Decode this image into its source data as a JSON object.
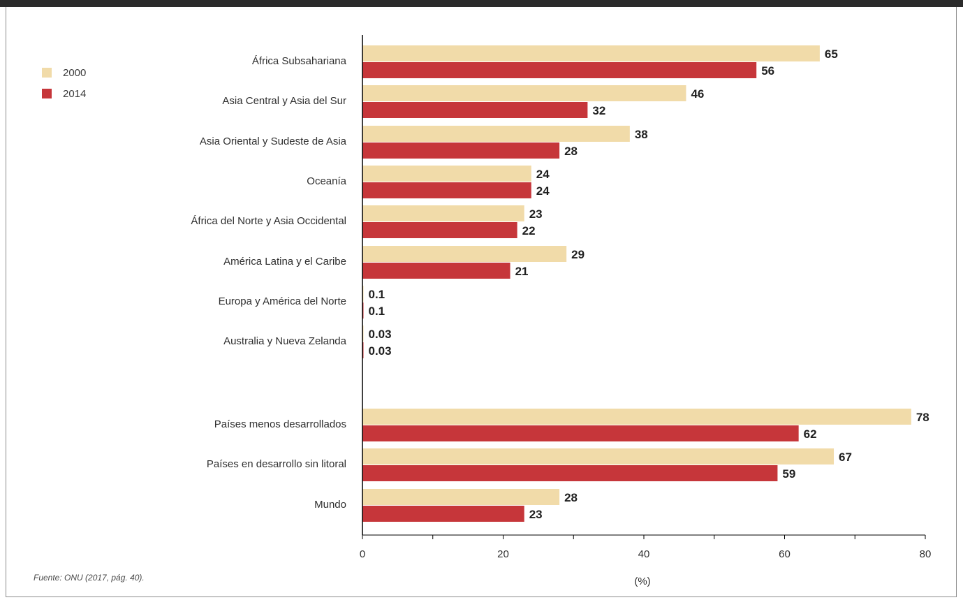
{
  "source_note": "Fuente: ONU (2017, pág. 40).",
  "legend": [
    {
      "label": "2000",
      "color": "#f1dba9"
    },
    {
      "label": "2014",
      "color": "#c6363a"
    }
  ],
  "chart_data": {
    "type": "bar",
    "orientation": "horizontal",
    "categories": [
      "África Subsahariana",
      "Asia Central y Asia del Sur",
      "Asia Oriental y Sudeste de Asia",
      "Oceanía",
      "África del Norte y Asia Occidental",
      "América Latina y el Caribe",
      "Europa y América del Norte",
      "Australia y Nueva Zelanda",
      "Países menos desarrollados",
      "Países en desarrollo sin litoral",
      "Mundo"
    ],
    "series": [
      {
        "name": "2000",
        "color": "#f1dba9",
        "values": [
          65,
          46,
          38,
          24,
          23,
          29,
          0.1,
          0.03,
          78,
          67,
          28
        ],
        "labels": [
          "65",
          "46",
          "38",
          "24",
          "23",
          "29",
          "0.1",
          "0.03",
          "78",
          "67",
          "28"
        ]
      },
      {
        "name": "2014",
        "color": "#c6363a",
        "values": [
          56,
          32,
          28,
          24,
          22,
          21,
          0.1,
          0.03,
          62,
          59,
          23
        ],
        "labels": [
          "56",
          "32",
          "28",
          "24",
          "22",
          "21",
          "0.1",
          "0.03",
          "62",
          "59",
          "23"
        ]
      }
    ],
    "xlabel": "(%)",
    "xlim": [
      0,
      80
    ],
    "xticks": [
      0,
      20,
      40,
      60,
      80
    ],
    "legend_position": "top-left"
  }
}
